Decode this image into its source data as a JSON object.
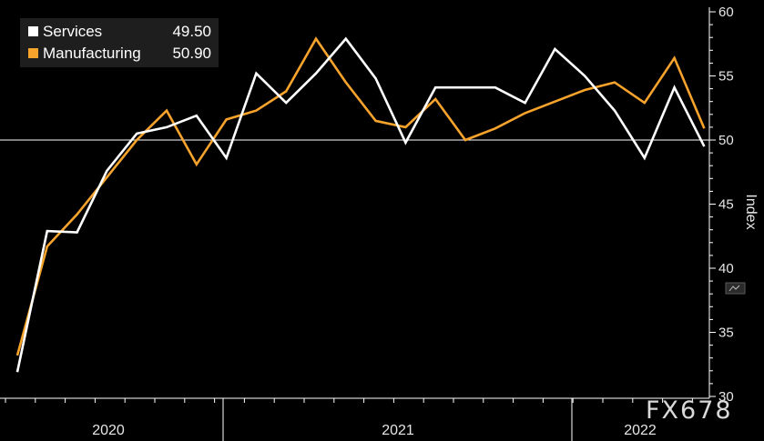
{
  "chart_data": {
    "type": "line",
    "title": "",
    "xlabel": "",
    "ylabel": "Index",
    "ylim": [
      30,
      60
    ],
    "y_ticks": [
      "30",
      "35",
      "40",
      "45",
      "50",
      "55",
      "60"
    ],
    "reference_line": 50,
    "x_year_labels": [
      "2020",
      "2021",
      "2022"
    ],
    "x": [
      "2020-04",
      "2020-05",
      "2020-06",
      "2020-07",
      "2020-08",
      "2020-09",
      "2020-10",
      "2020-11",
      "2020-12",
      "2021-01",
      "2021-02",
      "2021-03",
      "2021-04",
      "2021-05",
      "2021-06",
      "2021-07",
      "2021-08",
      "2021-09",
      "2021-10",
      "2021-11",
      "2021-12",
      "2022-01",
      "2022-02",
      "2022-03"
    ],
    "series": [
      {
        "name": "Services",
        "latest_label": "49.50",
        "color": "#ffffff",
        "values": [
          31.9,
          42.9,
          42.8,
          47.6,
          50.5,
          51.0,
          51.9,
          48.6,
          55.2,
          52.9,
          55.2,
          57.9,
          54.8,
          49.8,
          54.1,
          54.1,
          54.1,
          52.9,
          57.1,
          55.0,
          52.3,
          48.6,
          54.1,
          49.5
        ]
      },
      {
        "name": "Manufacturing",
        "latest_label": "50.90",
        "color": "#f7a32c",
        "values": [
          33.2,
          41.7,
          44.2,
          47.1,
          50.0,
          52.3,
          48.1,
          51.6,
          52.3,
          53.8,
          57.9,
          54.5,
          51.5,
          51.0,
          53.2,
          50.0,
          50.9,
          52.1,
          53.0,
          53.9,
          54.5,
          52.9,
          56.4,
          50.9
        ]
      }
    ],
    "legend_position": "top-left"
  },
  "watermark": "FX678",
  "colors": {
    "background": "#000000",
    "axis": "#ffffff",
    "services": "#ffffff",
    "manufacturing": "#f7a32c"
  },
  "icons": {
    "chart_toggle": "mini-chart-icon"
  }
}
